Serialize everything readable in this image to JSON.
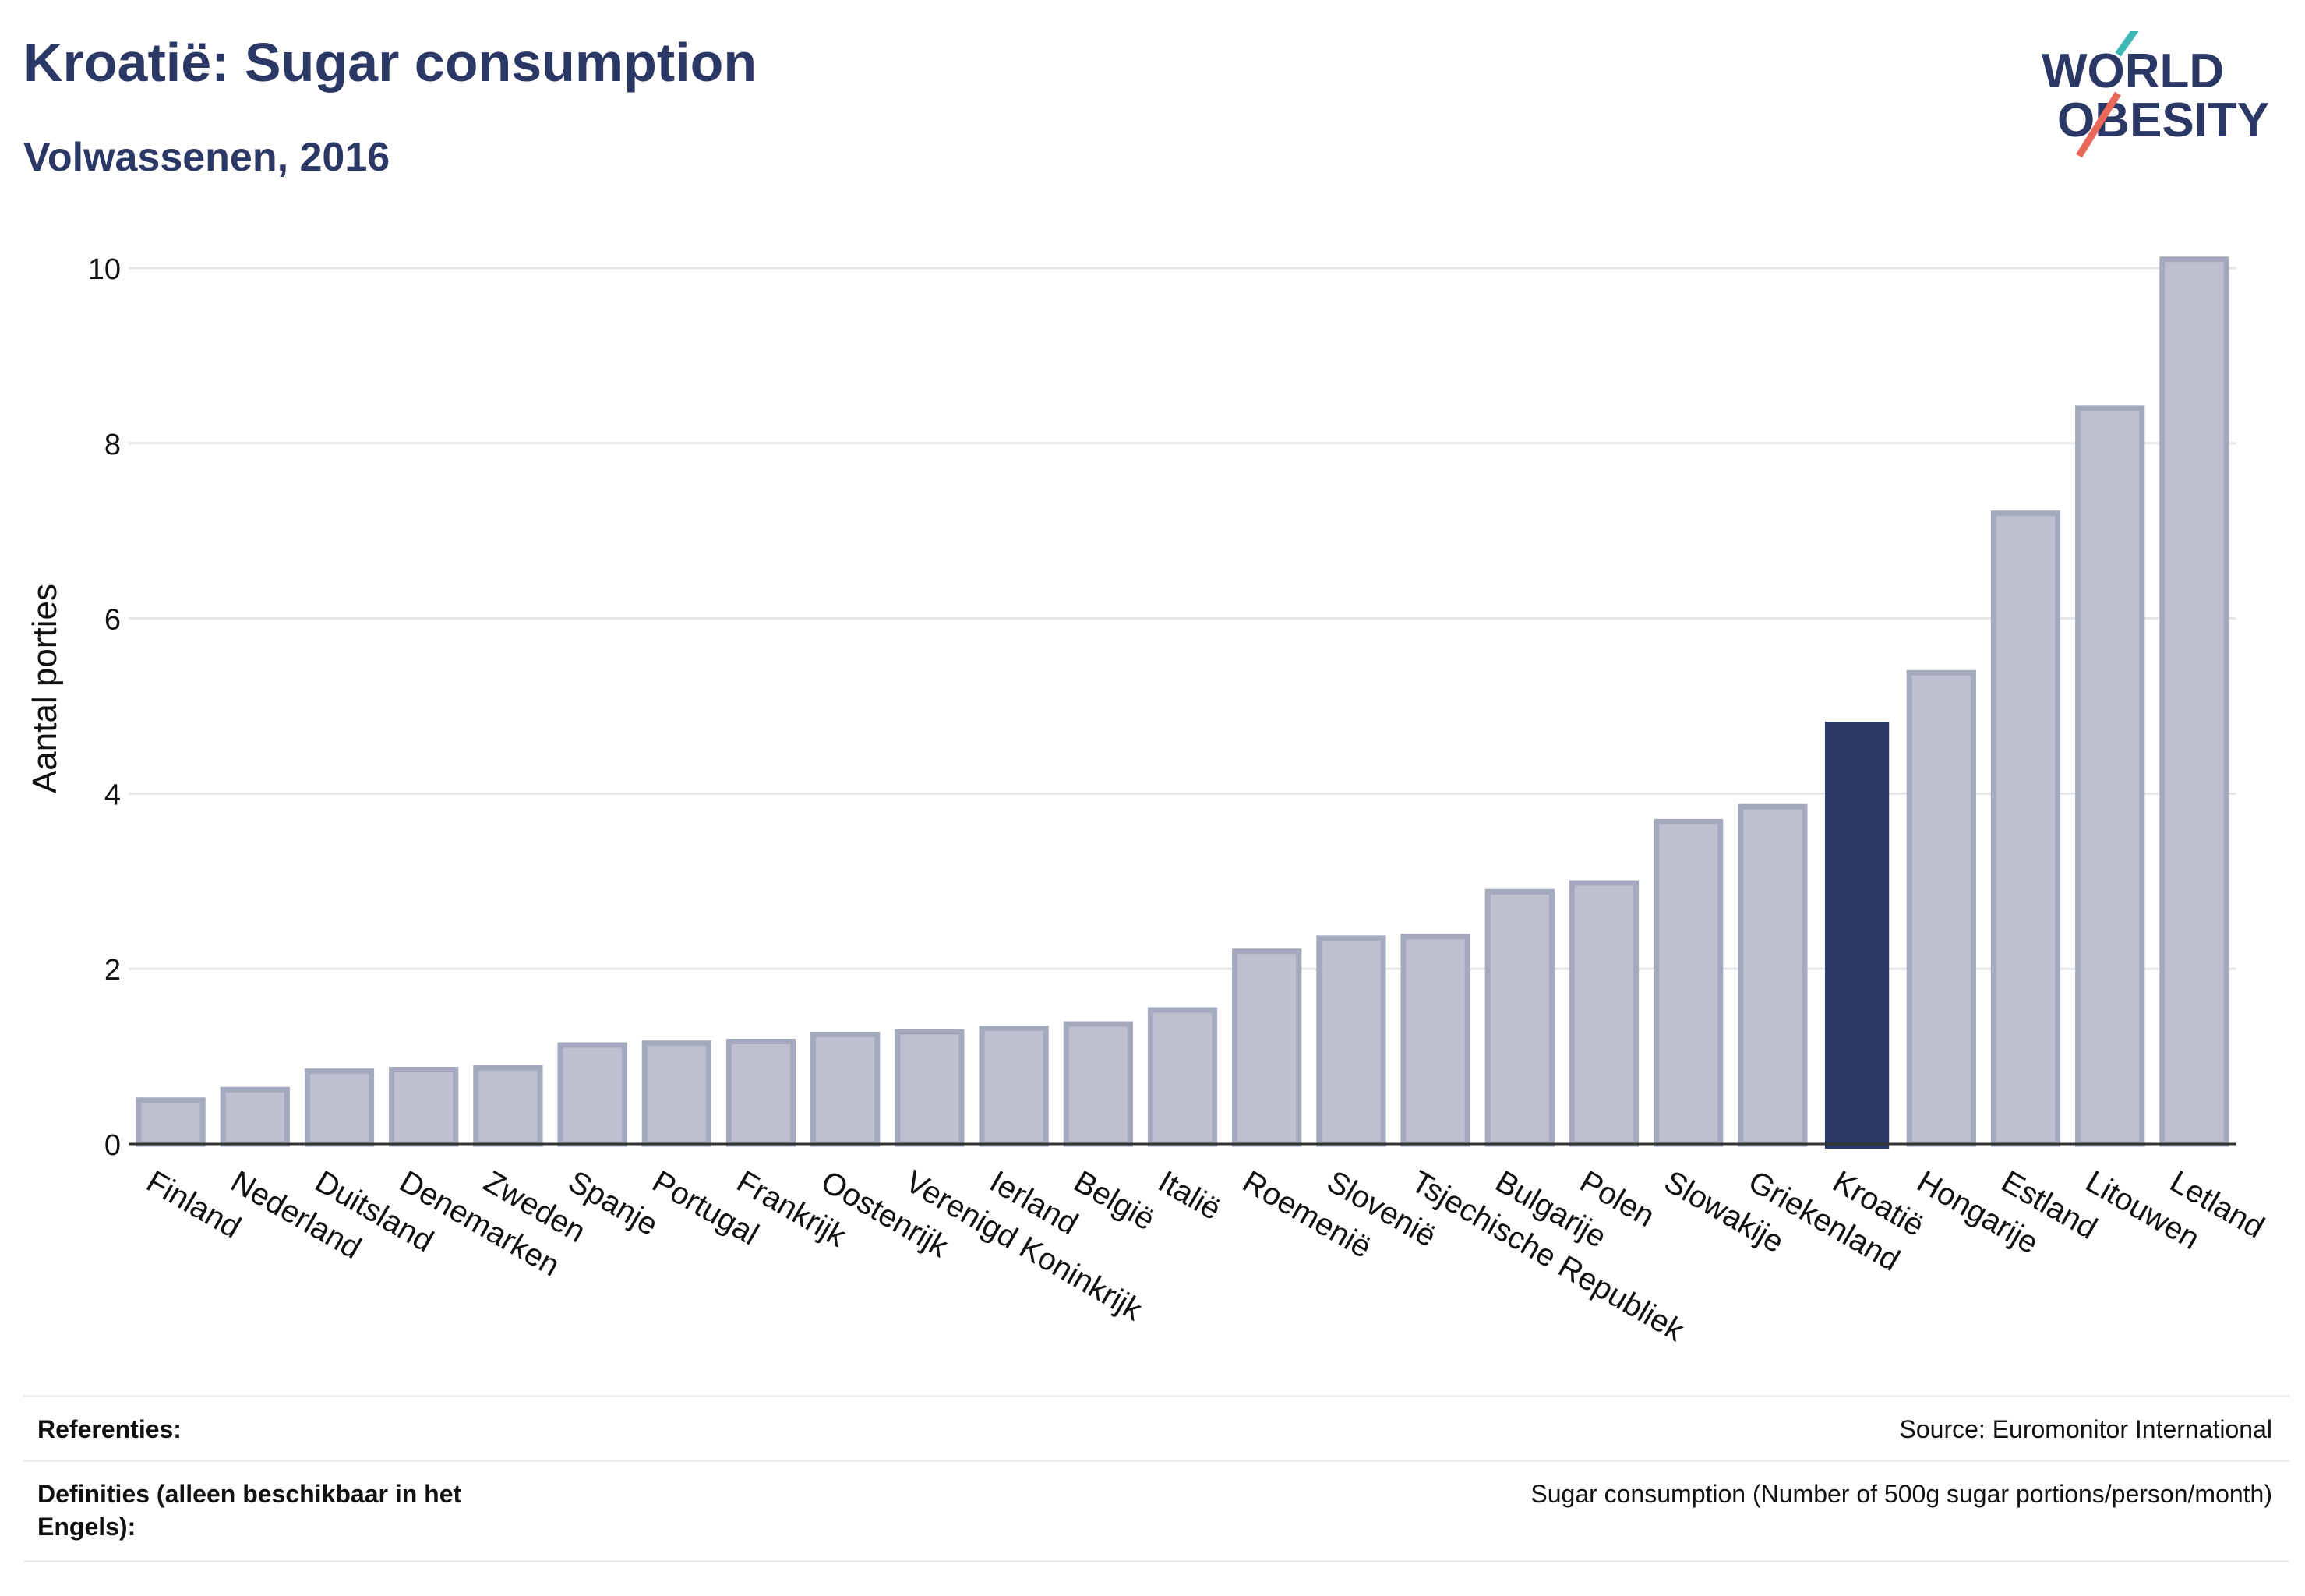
{
  "header": {
    "title": "Kroatië: Sugar consumption",
    "subtitle": "Volwassenen, 2016"
  },
  "logo": {
    "line1": "WORLD",
    "line2": "OBESITY",
    "colors": {
      "text": "#2b3764",
      "slash_top": "#3fb8b5",
      "slash_bottom": "#e8685a"
    }
  },
  "chart_data": {
    "type": "bar",
    "ylabel": "Aantal porties",
    "xlabel": "",
    "ylim": [
      0,
      10.5
    ],
    "yticks": [
      0,
      2,
      4,
      6,
      8,
      10
    ],
    "grid": true,
    "highlight": "Kroatië",
    "colors": {
      "bar": "#bcc0cf",
      "bar_edge": "#a4a9bd",
      "highlight": "#2b3764"
    },
    "categories": [
      "Finland",
      "Nederland",
      "Duitsland",
      "Denemarken",
      "Zweden",
      "Spanje",
      "Portugal",
      "Frankrijk",
      "Oostenrijk",
      "Verenigd Koninkrijk",
      "Ierland",
      "België",
      "Italië",
      "Roemenië",
      "Slovenië",
      "Tsjechische Republiek",
      "Bulgarije",
      "Polen",
      "Slowakije",
      "Griekenland",
      "Kroatië",
      "Hongarije",
      "Estland",
      "Litouwen",
      "Letland"
    ],
    "values": [
      0.5,
      0.62,
      0.83,
      0.85,
      0.87,
      1.13,
      1.15,
      1.17,
      1.25,
      1.28,
      1.32,
      1.37,
      1.53,
      2.2,
      2.35,
      2.37,
      2.88,
      2.98,
      3.68,
      3.85,
      4.82,
      5.38,
      7.2,
      8.4,
      10.1
    ]
  },
  "footer": {
    "references_label": "Referenties:",
    "references_value": "Source: Euromonitor International",
    "definitions_label": "Definities (alleen beschikbaar in het Engels):",
    "definitions_value": "Sugar consumption (Number of 500g sugar portions/person/month)"
  }
}
